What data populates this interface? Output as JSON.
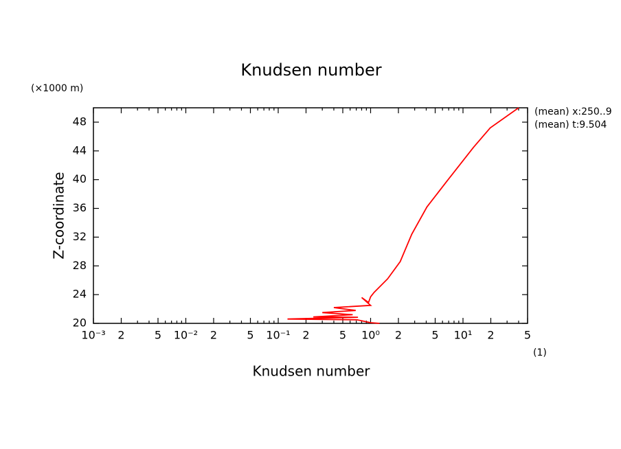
{
  "chart_data": {
    "type": "line",
    "title": "Knudsen number",
    "x_label": "Knudsen number",
    "y_label": "Z-coordinate",
    "y_unit": "(×1000 m)",
    "x_unit": "(1)",
    "annotations": [
      "(mean) x:250..9",
      "(mean) t:9.504"
    ],
    "color": "#ff0000",
    "log_x": true,
    "xlim": [
      0.001,
      50
    ],
    "ylim": [
      20,
      50
    ],
    "xticks": [
      {
        "value": 0.001,
        "label": "10⁻³"
      },
      {
        "value": 0.002,
        "label": "2"
      },
      {
        "value": 0.005,
        "label": "5"
      },
      {
        "value": 0.01,
        "label": "10⁻²"
      },
      {
        "value": 0.02,
        "label": "2"
      },
      {
        "value": 0.05,
        "label": "5"
      },
      {
        "value": 0.1,
        "label": "10⁻¹"
      },
      {
        "value": 0.2,
        "label": "2"
      },
      {
        "value": 0.5,
        "label": "5"
      },
      {
        "value": 1,
        "label": "10⁰"
      },
      {
        "value": 2,
        "label": "2"
      },
      {
        "value": 5,
        "label": "5"
      },
      {
        "value": 10,
        "label": "10¹"
      },
      {
        "value": 20,
        "label": "2"
      },
      {
        "value": 50,
        "label": "5"
      }
    ],
    "x_minor_ticks": [
      0.003,
      0.004,
      0.006,
      0.007,
      0.008,
      0.009,
      0.03,
      0.04,
      0.06,
      0.07,
      0.08,
      0.09,
      0.3,
      0.4,
      0.6,
      0.7,
      0.8,
      0.9,
      3,
      4,
      6,
      7,
      8,
      9,
      30,
      40
    ],
    "yticks": [
      20,
      24,
      28,
      32,
      36,
      40,
      44,
      48
    ],
    "x": [
      1.25,
      1.0,
      0.71,
      0.126,
      0.73,
      0.24,
      0.64,
      0.3,
      0.69,
      0.4,
      1.0,
      0.8,
      0.95,
      1.0,
      1.09,
      1.53,
      2.09,
      2.79,
      4.07,
      6.8,
      13.0,
      19.7,
      40
    ],
    "values": [
      20.0,
      20.1,
      20.5,
      20.6,
      20.85,
      20.9,
      21.2,
      21.5,
      21.8,
      22.2,
      22.5,
      23.6,
      22.9,
      23.7,
      24.3,
      26.2,
      28.6,
      32.4,
      36.2,
      39.9,
      44.5,
      47.2,
      50
    ]
  }
}
